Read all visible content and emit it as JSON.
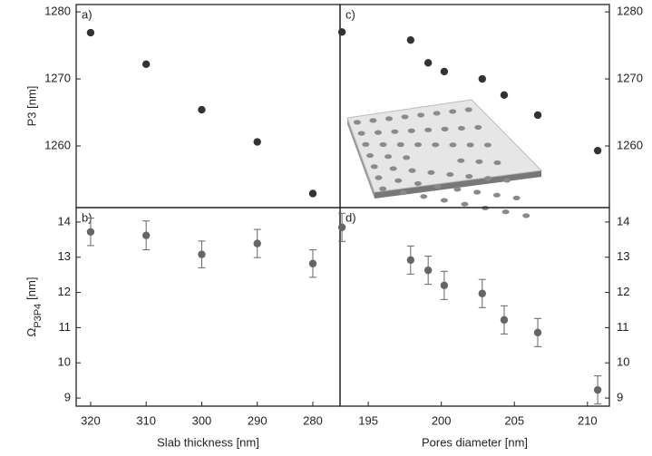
{
  "chart_data": [
    {
      "type": "scatter",
      "label": "a)",
      "yaxis": "left",
      "ylabel": "P3 [nm]",
      "color": "#333333",
      "x": [
        320,
        310,
        300,
        290,
        280
      ],
      "values": [
        1276.9,
        1272.2,
        1265.4,
        1260.6,
        1252.9
      ],
      "xlim": [
        322.6,
        275.1
      ],
      "ylim": [
        1250.8,
        1281.1
      ],
      "yticks": [
        1260,
        1270,
        1280
      ]
    },
    {
      "type": "scatter",
      "label": "b)",
      "yaxis": "left",
      "ylabel": {
        "symbol": "Ω",
        "subscript": "P3P4",
        "unit": "[nm]"
      },
      "xlabel": "Slab thickness [nm]",
      "color": "#666666",
      "x": [
        320,
        310,
        300,
        290,
        280
      ],
      "values": [
        13.72,
        13.62,
        13.08,
        13.39,
        12.82
      ],
      "errors": [
        0.39,
        0.41,
        0.38,
        0.4,
        0.39
      ],
      "xlim": [
        322.6,
        275.1
      ],
      "ylim": [
        8.77,
        14.41
      ],
      "xticks": [
        320,
        310,
        300,
        290,
        280
      ],
      "yticks": [
        9,
        10,
        11,
        12,
        13,
        14
      ]
    },
    {
      "type": "scatter",
      "label": "c)",
      "yaxis": "right",
      "color": "#333333",
      "x": [
        193.2,
        197.9,
        199.1,
        200.2,
        202.8,
        204.3,
        206.6,
        210.7
      ],
      "values": [
        1277.0,
        1275.8,
        1272.4,
        1271.1,
        1270.0,
        1267.6,
        1264.6,
        1259.3
      ],
      "xlim": [
        193.07,
        211.5
      ],
      "ylim": [
        1250.8,
        1281.1
      ],
      "yticks": [
        1260,
        1270,
        1280
      ]
    },
    {
      "type": "scatter",
      "label": "d)",
      "yaxis": "right",
      "xlabel": "Pores diameter [nm]",
      "color": "#666666",
      "x": [
        193.2,
        197.9,
        199.1,
        200.2,
        202.8,
        204.3,
        206.6,
        210.7
      ],
      "values": [
        13.85,
        12.92,
        12.63,
        12.2,
        11.97,
        11.22,
        10.86,
        9.23
      ],
      "errors": [
        0.4,
        0.4,
        0.4,
        0.4,
        0.4,
        0.4,
        0.4,
        0.4
      ],
      "xlim": [
        193.07,
        211.5
      ],
      "ylim": [
        8.77,
        14.41
      ],
      "xticks": [
        195,
        200,
        205,
        210
      ],
      "yticks": [
        9,
        10,
        11,
        12,
        13,
        14
      ]
    }
  ]
}
